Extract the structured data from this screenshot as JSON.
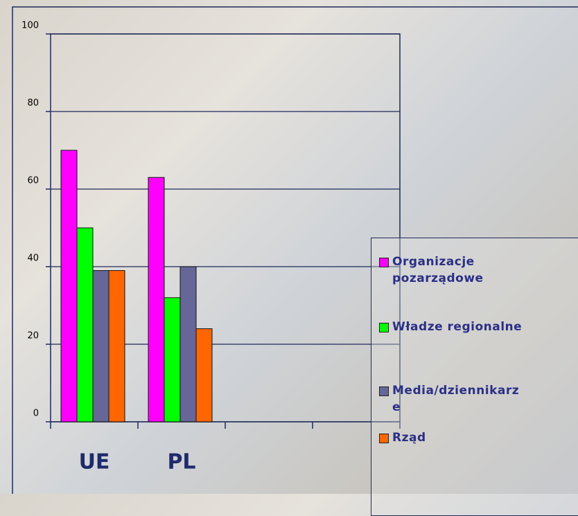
{
  "chart_data": {
    "type": "bar",
    "categories": [
      "UE",
      "PL",
      null,
      null
    ],
    "series": [
      {
        "name": "Organizacje pozarządowe",
        "color": "#ff00ff",
        "values": [
          70,
          63,
          null,
          null
        ]
      },
      {
        "name": "Władze regionalne",
        "color": "#00ff00",
        "values": [
          50,
          32,
          null,
          null
        ]
      },
      {
        "name": "Media/dziennikarze",
        "color": "#666699",
        "values": [
          39,
          40,
          null,
          null
        ]
      },
      {
        "name": "Rząd",
        "color": "#ff6600",
        "values": [
          39,
          24,
          null,
          null
        ]
      }
    ],
    "ylim": [
      0,
      100
    ],
    "yticks": [
      0,
      20,
      40,
      60,
      80,
      100
    ],
    "grid": true,
    "legend": "right"
  }
}
